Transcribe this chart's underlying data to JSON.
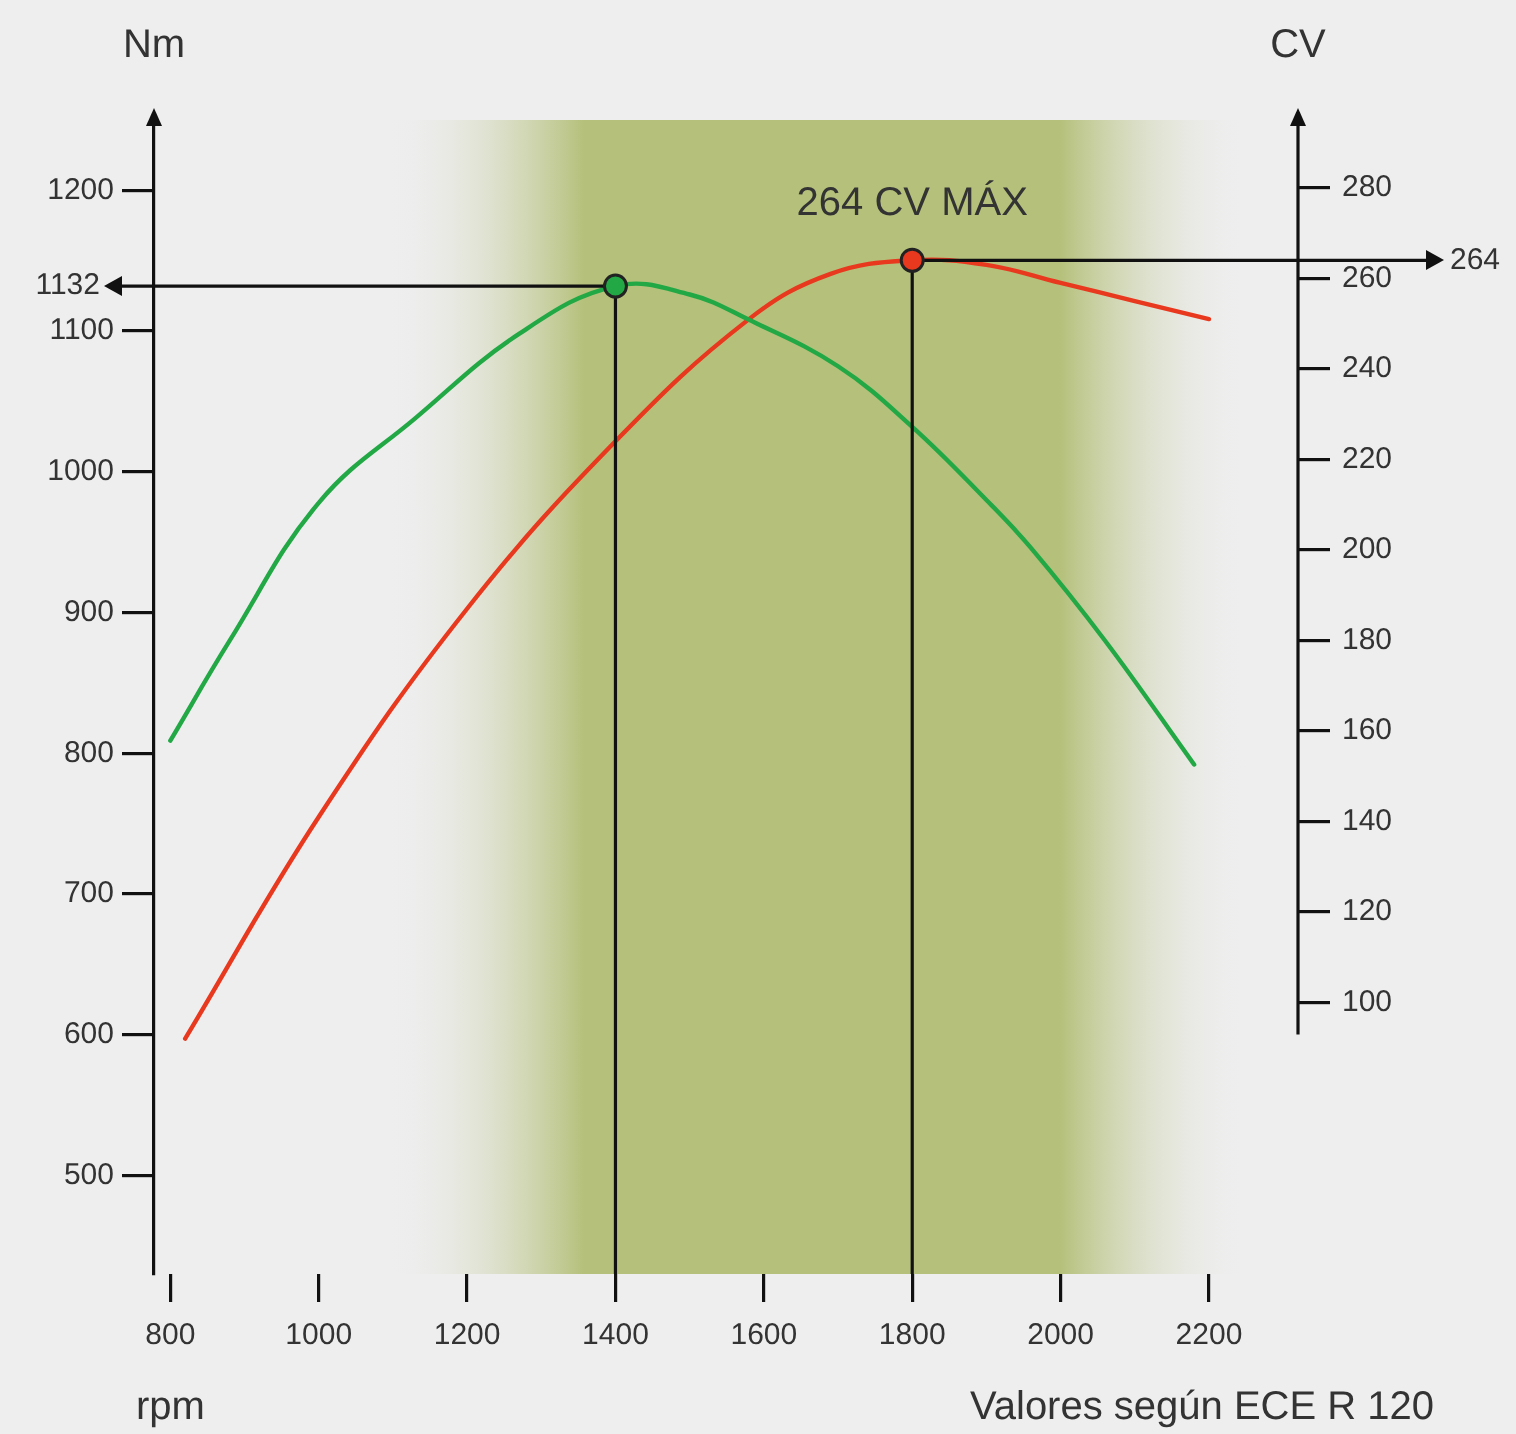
{
  "chart_data": {
    "type": "line",
    "xlabel": "rpm",
    "ylabel": "Nm",
    "y2label": "CV",
    "series": [
      {
        "color": "#22a845",
        "axis": "y",
        "x": [
          800,
          880,
          1000,
          1130,
          1270,
          1400,
          1500,
          1580,
          1700,
          1800,
          1900,
          1960,
          2060,
          2180
        ],
        "values": [
          809,
          880,
          978,
          1038,
          1098,
          1132,
          1126,
          1108,
          1075,
          1032,
          980,
          946,
          880,
          792
        ]
      },
      {
        "color": "#e8391f",
        "axis": "y2",
        "x": [
          820,
          1000,
          1200,
          1400,
          1580,
          1690,
          1800,
          1900,
          2000,
          2100,
          2200
        ],
        "values": [
          92,
          141,
          187,
          224,
          251,
          261,
          264,
          263,
          259,
          255,
          251
        ]
      }
    ],
    "xlim": [
      778,
      2320
    ],
    "xticks": [
      800,
      1000,
      1200,
      1400,
      1600,
      1800,
      2000,
      2200
    ],
    "ylim": [
      430,
      1250
    ],
    "yticks": [
      500,
      600,
      700,
      800,
      900,
      1000,
      1100,
      1200
    ],
    "y2lim": [
      40,
      295
    ],
    "y2ticks": [
      100,
      120,
      140,
      160,
      180,
      200,
      220,
      240,
      260,
      280
    ],
    "ref_lines": [
      {
        "axis": "y",
        "value": 1132,
        "label": "1132"
      },
      {
        "axis": "y2",
        "value": 264,
        "label": "264"
      },
      {
        "axis": "x",
        "value": 1400
      },
      {
        "axis": "x",
        "value": 1800
      }
    ],
    "bands": [
      {
        "axis": "x",
        "from": 1090,
        "to": 2255,
        "color": "#b5c07a"
      }
    ],
    "annotations": [
      "264 CV MÁX",
      "Valores según ECE R 120"
    ],
    "grid": false,
    "legend": false,
    "marker": "none",
    "line_style": "solid"
  }
}
